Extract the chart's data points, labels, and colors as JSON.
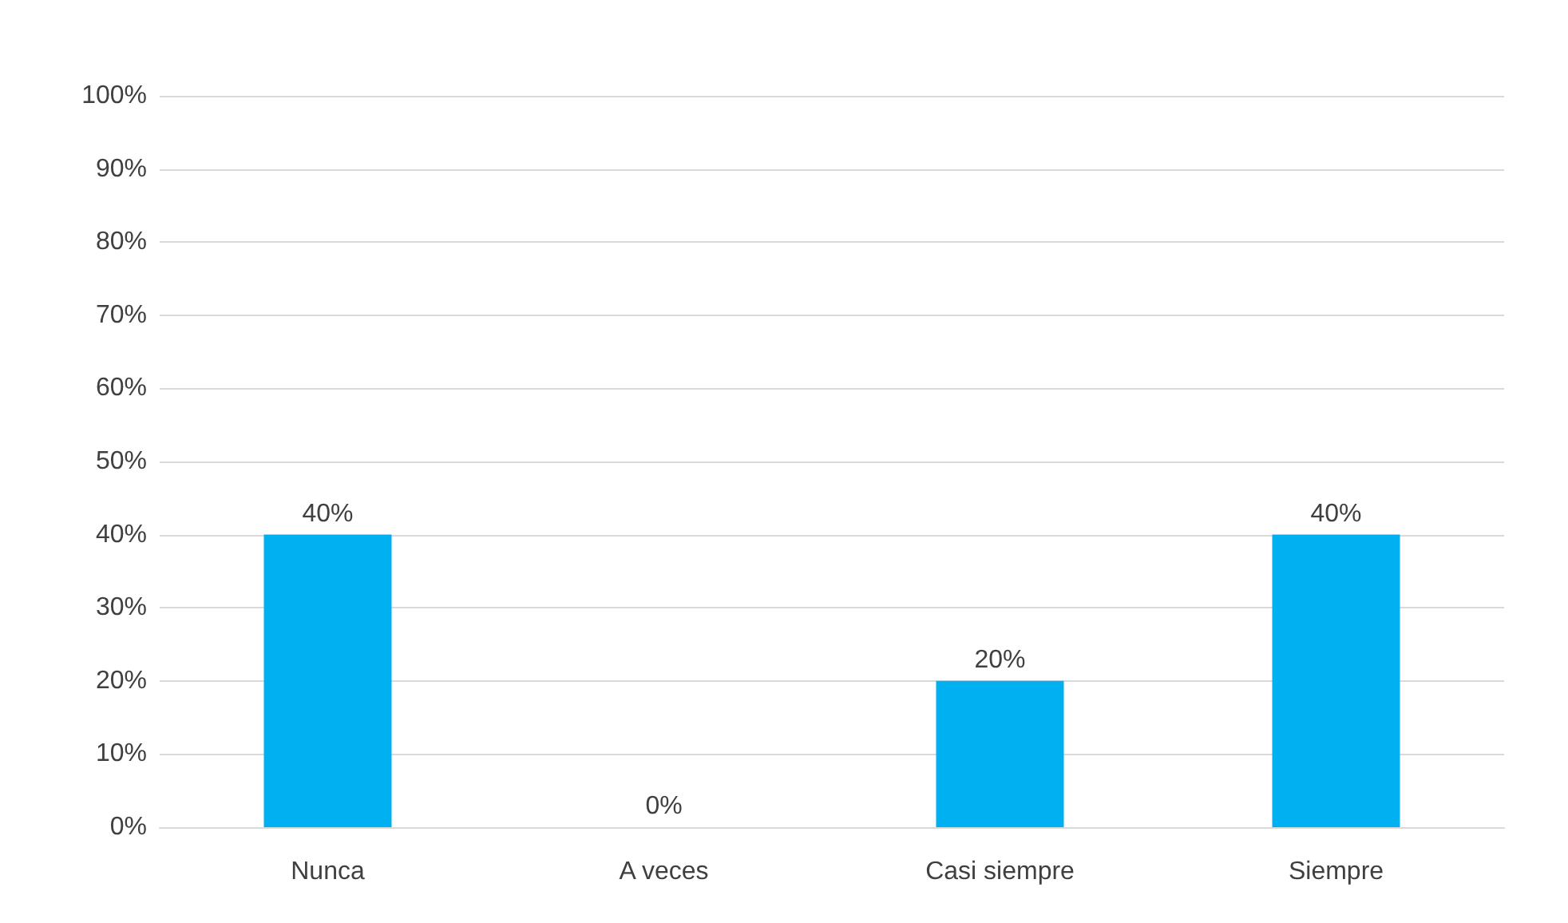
{
  "chart_data": {
    "type": "bar",
    "categories": [
      "Nunca",
      "A veces",
      "Casi siempre",
      "Siempre"
    ],
    "values": [
      40,
      0,
      20,
      40
    ],
    "color": "#00b0f0",
    "value_labels": [
      "40%",
      "0%",
      "20%",
      "40%"
    ],
    "ylim": [
      0,
      100
    ],
    "yticks": [
      {
        "value": 0,
        "label": "0%"
      },
      {
        "value": 10,
        "label": "10%"
      },
      {
        "value": 20,
        "label": "20%"
      },
      {
        "value": 30,
        "label": "30%"
      },
      {
        "value": 40,
        "label": "40%"
      },
      {
        "value": 50,
        "label": "50%"
      },
      {
        "value": 60,
        "label": "60%"
      },
      {
        "value": 70,
        "label": "70%"
      },
      {
        "value": 80,
        "label": "80%"
      },
      {
        "value": 90,
        "label": "90%"
      },
      {
        "value": 100,
        "label": "100%"
      }
    ],
    "grid": "y"
  }
}
